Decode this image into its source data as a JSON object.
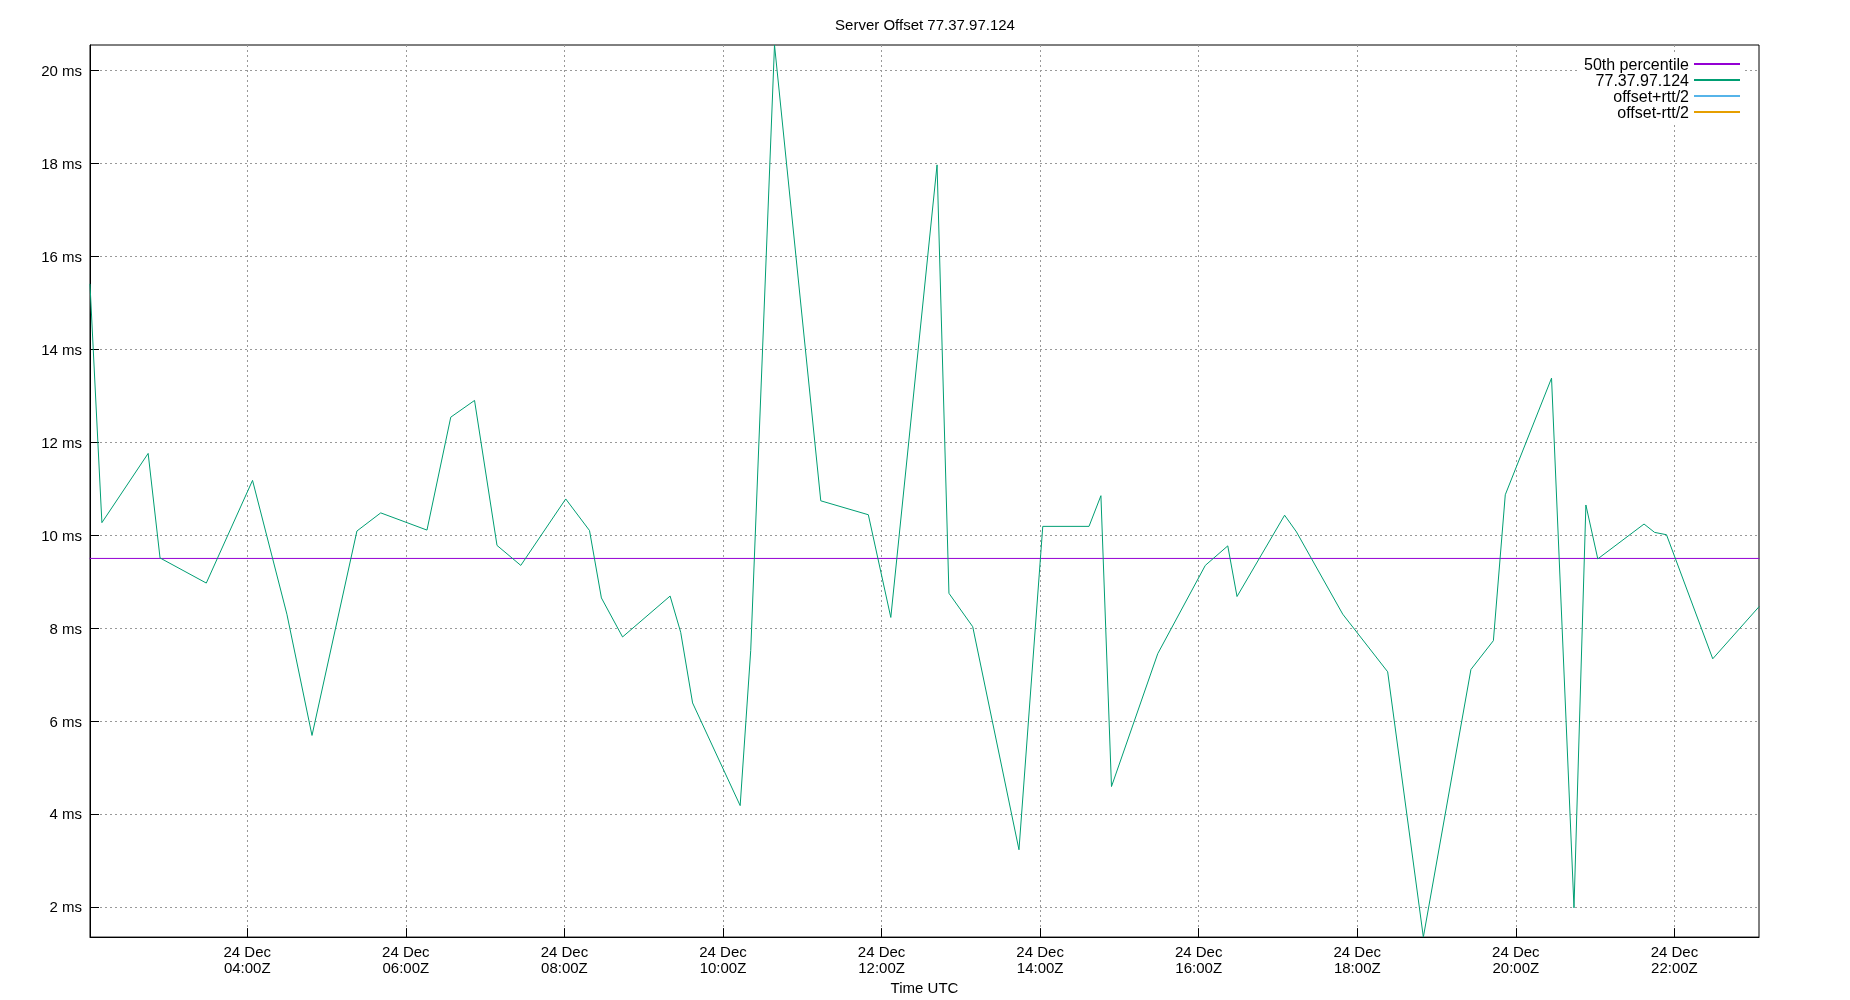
{
  "chart_data": {
    "type": "line",
    "title": "Server Offset 77.37.97.124",
    "xlabel": "Time UTC",
    "x": [
      "--12-24T02:01",
      "--12-24T02:10",
      "--12-24T02:45",
      "--12-24T02:54",
      "--12-24T03:29",
      "--12-24T04:04",
      "--12-24T04:30",
      "--12-24T04:49",
      "--12-24T05:23",
      "--12-24T05:41",
      "--12-24T06:16",
      "--12-24T06:34",
      "--12-24T06:52",
      "--12-24T07:09",
      "--12-24T07:27",
      "--12-24T08:01",
      "--12-24T08:19",
      "--12-24T08:28",
      "--12-24T08:44",
      "--12-24T09:20",
      "--12-24T09:28",
      "--12-24T09:37",
      "--12-24T10:13",
      "--12-24T10:21",
      "--12-24T10:39",
      "--12-24T11:14",
      "--12-24T11:50",
      "--12-24T12:07",
      "--12-24T12:42",
      "--12-24T12:51",
      "--12-24T13:09",
      "--12-24T13:44",
      "--12-24T14:02",
      "--12-24T14:37",
      "--12-24T14:46",
      "--12-24T14:54",
      "--12-24T15:29",
      "--12-24T16:05",
      "--12-24T16:22",
      "--12-24T16:29",
      "--12-24T17:05",
      "--12-24T17:14",
      "--12-24T17:49",
      "--12-24T18:23",
      "--12-24T18:50",
      "--12-24T19:26",
      "--12-24T19:43",
      "--12-24T19:52",
      "--12-24T20:27",
      "--12-24T20:44",
      "--12-24T20:53",
      "--12-24T21:02",
      "--12-24T21:37",
      "--12-24T21:45",
      "--12-24T21:54",
      "--12-24T22:29",
      "--12-24T23:04"
    ],
    "series": [
      {
        "name": "50th percentile",
        "color": "#9400d3",
        "x": [
          "--12-24T02:01",
          "--12-24T23:04"
        ],
        "values": [
          9.5,
          9.5
        ]
      },
      {
        "name": "77.37.97.124",
        "color": "#009e73",
        "values": [
          15.4,
          10.27,
          11.76,
          9.51,
          8.97,
          11.18,
          8.3,
          5.69,
          10.09,
          10.48,
          10.11,
          12.54,
          12.9,
          9.78,
          9.35,
          10.78,
          10.1,
          8.65,
          7.81,
          8.69,
          7.91,
          6.39,
          4.18,
          7.52,
          20.55,
          10.74,
          10.44,
          8.23,
          17.97,
          8.75,
          8.03,
          3.23,
          10.19,
          10.19,
          10.85,
          4.59,
          7.45,
          9.35,
          9.77,
          8.68,
          10.43,
          10.07,
          8.3,
          7.06,
          1.35,
          7.11,
          7.73,
          10.87,
          13.38,
          1.98,
          10.65,
          9.49,
          10.24,
          10.06,
          10.01,
          7.34,
          8.46
        ]
      },
      {
        "name": "offset+rtt/2",
        "color": "#56b4e9",
        "values": [
          null,
          null,
          null,
          null,
          null,
          null,
          null,
          null,
          null,
          null,
          null,
          null,
          null,
          null,
          null,
          null,
          null,
          null,
          null,
          null,
          null,
          null,
          null,
          null,
          null,
          null,
          null,
          null,
          null,
          null,
          null,
          null,
          null,
          null,
          null,
          null,
          null,
          null,
          null,
          null,
          null,
          null,
          null,
          null,
          null,
          null,
          null,
          null,
          null,
          null,
          null,
          null,
          null,
          null,
          null,
          null,
          null
        ]
      },
      {
        "name": "offset-rtt/2",
        "color": "#e69f00",
        "values": [
          null,
          null,
          null,
          null,
          null,
          null,
          null,
          null,
          null,
          null,
          null,
          null,
          null,
          null,
          null,
          null,
          null,
          null,
          null,
          null,
          null,
          null,
          null,
          null,
          null,
          null,
          null,
          null,
          null,
          null,
          null,
          null,
          null,
          null,
          null,
          null,
          null,
          null,
          null,
          null,
          null,
          null,
          null,
          null,
          null,
          null,
          null,
          null,
          null,
          null,
          null,
          null,
          null,
          null,
          null,
          null,
          null
        ]
      }
    ],
    "xlim": [
      "--12-24T02:01",
      "--12-24T23:04"
    ],
    "xticks": [
      {
        "value": "--12-24T04:00",
        "label": "24 Dec\n04:00Z"
      },
      {
        "value": "--12-24T06:00",
        "label": "24 Dec\n06:00Z"
      },
      {
        "value": "--12-24T08:00",
        "label": "24 Dec\n08:00Z"
      },
      {
        "value": "--12-24T10:00",
        "label": "24 Dec\n10:00Z"
      },
      {
        "value": "--12-24T12:00",
        "label": "24 Dec\n12:00Z"
      },
      {
        "value": "--12-24T14:00",
        "label": "24 Dec\n14:00Z"
      },
      {
        "value": "--12-24T16:00",
        "label": "24 Dec\n16:00Z"
      },
      {
        "value": "--12-24T18:00",
        "label": "24 Dec\n18:00Z"
      },
      {
        "value": "--12-24T20:00",
        "label": "24 Dec\n20:00Z"
      },
      {
        "value": "--12-24T22:00",
        "label": "24 Dec\n22:00Z"
      }
    ],
    "ylim": [
      1.35,
      20.55
    ],
    "yticks": [
      {
        "value": 2,
        "label": "2 ms"
      },
      {
        "value": 4,
        "label": "4 ms"
      },
      {
        "value": 6,
        "label": "6 ms"
      },
      {
        "value": 8,
        "label": "8 ms"
      },
      {
        "value": 10,
        "label": "10 ms"
      },
      {
        "value": 12,
        "label": "12 ms"
      },
      {
        "value": 14,
        "label": "14 ms"
      },
      {
        "value": 16,
        "label": "16 ms"
      },
      {
        "value": 18,
        "label": "18 ms"
      },
      {
        "value": 20,
        "label": "20 ms"
      }
    ],
    "grid": true,
    "legend": "top right",
    "marker": "none",
    "line_style": "solid"
  }
}
